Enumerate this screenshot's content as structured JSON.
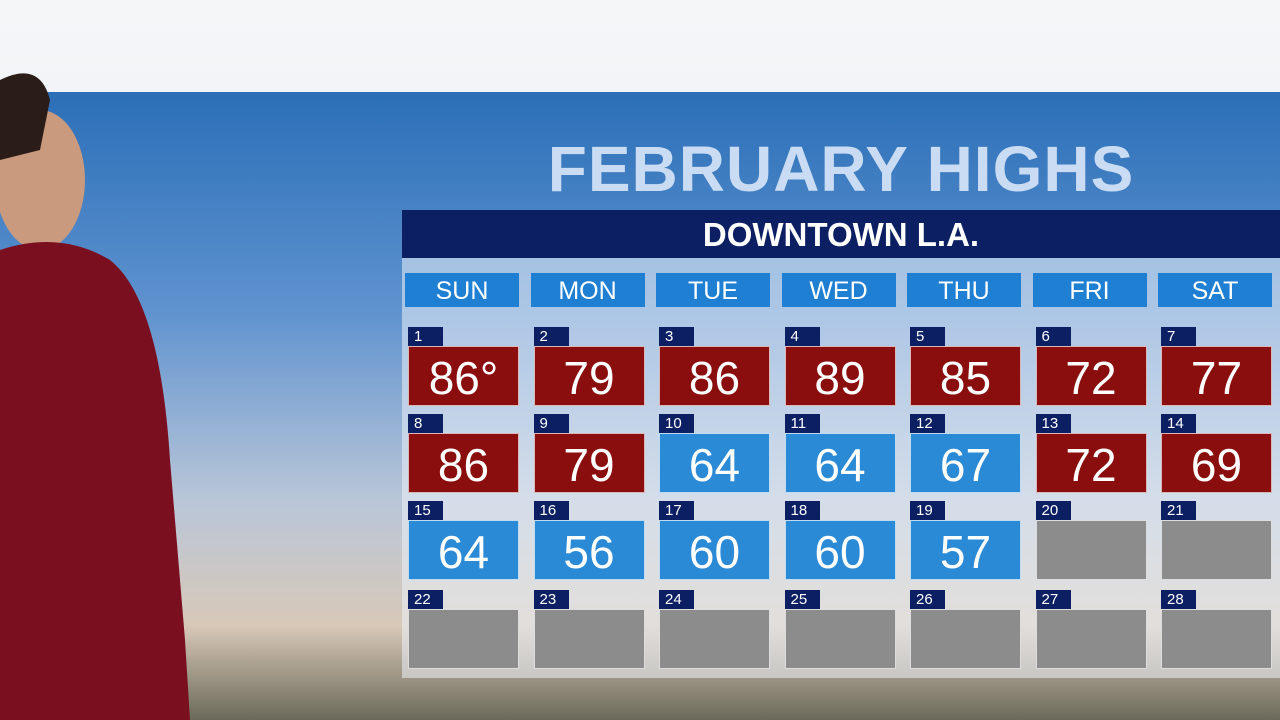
{
  "title": "FEBRUARY HIGHS",
  "subtitle": "DOWNTOWN L.A.",
  "weekdays": [
    "SUN",
    "MON",
    "TUE",
    "WED",
    "THU",
    "FRI",
    "SAT"
  ],
  "weeks": [
    [
      {
        "day": 1,
        "high": "86°",
        "color": "#8b0e0e"
      },
      {
        "day": 2,
        "high": 79,
        "color": "#8b0e0e"
      },
      {
        "day": 3,
        "high": 86,
        "color": "#8b0e0e"
      },
      {
        "day": 4,
        "high": 89,
        "color": "#8b0e0e"
      },
      {
        "day": 5,
        "high": 85,
        "color": "#8b0e0e"
      },
      {
        "day": 6,
        "high": 72,
        "color": "#8b0e0e"
      },
      {
        "day": 7,
        "high": 77,
        "color": "#8b0e0e"
      }
    ],
    [
      {
        "day": 8,
        "high": 86,
        "color": "#8b0e0e"
      },
      {
        "day": 9,
        "high": 79,
        "color": "#8b0e0e"
      },
      {
        "day": 10,
        "high": 64,
        "color": "#2b8ad6"
      },
      {
        "day": 11,
        "high": 64,
        "color": "#2b8ad6"
      },
      {
        "day": 12,
        "high": 67,
        "color": "#2b8ad6"
      },
      {
        "day": 13,
        "high": 72,
        "color": "#8b0e0e"
      },
      {
        "day": 14,
        "high": 69,
        "color": "#8b0e0e"
      }
    ],
    [
      {
        "day": 15,
        "high": 64,
        "color": "#2b8ad6"
      },
      {
        "day": 16,
        "high": 56,
        "color": "#2b8ad6"
      },
      {
        "day": 17,
        "high": 60,
        "color": "#2b8ad6"
      },
      {
        "day": 18,
        "high": 60,
        "color": "#2b8ad6"
      },
      {
        "day": 19,
        "high": 57,
        "color": "#2b8ad6"
      },
      {
        "day": 20,
        "color": "#8c8c8c"
      },
      {
        "day": 21,
        "color": "#8c8c8c"
      }
    ],
    [
      {
        "day": 22,
        "color": "#8c8c8c"
      },
      {
        "day": 23,
        "color": "#8c8c8c"
      },
      {
        "day": 24,
        "color": "#8c8c8c"
      },
      {
        "day": 25,
        "color": "#8c8c8c"
      },
      {
        "day": 26,
        "color": "#8c8c8c"
      },
      {
        "day": 27,
        "color": "#8c8c8c"
      },
      {
        "day": 28,
        "color": "#8c8c8c"
      }
    ]
  ]
}
